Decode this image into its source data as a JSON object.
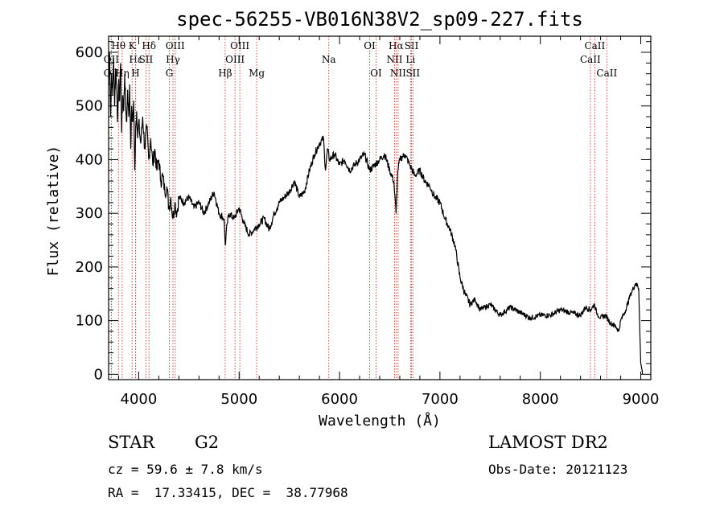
{
  "chart_data": {
    "type": "line",
    "title": "spec-56255-VB016N38V2_sp09-227.fits",
    "xlabel": "Wavelength (Å)",
    "ylabel": "Flux (relative)",
    "xlim": [
      3700,
      9100
    ],
    "ylim": [
      -10,
      630
    ],
    "xticks": [
      4000,
      5000,
      6000,
      7000,
      8000,
      9000
    ],
    "yticks": [
      0,
      100,
      200,
      300,
      400,
      500,
      600
    ],
    "line_color": "#000000",
    "marker_color": "#c0392b",
    "series": [
      {
        "x": [
          3700,
          3710,
          3720,
          3730,
          3740,
          3750,
          3760,
          3770,
          3780,
          3790,
          3800,
          3810,
          3820,
          3830,
          3840,
          3850,
          3860,
          3870,
          3880,
          3890,
          3900,
          3910,
          3920,
          3930,
          3940,
          3950,
          3960,
          3970,
          3980,
          3990,
          4000,
          4020,
          4040,
          4060,
          4080,
          4100,
          4120,
          4140,
          4160,
          4180,
          4200,
          4220,
          4240,
          4260,
          4280,
          4300,
          4320,
          4340,
          4360,
          4380,
          4400,
          4450,
          4500,
          4550,
          4600,
          4650,
          4700,
          4750,
          4800,
          4850,
          4862,
          4880,
          4900,
          4950,
          5000,
          5050,
          5100,
          5150,
          5200,
          5250,
          5300,
          5350,
          5400,
          5450,
          5500,
          5550,
          5600,
          5650,
          5700,
          5750,
          5800,
          5840,
          5860,
          5880,
          5900,
          5950,
          6000,
          6050,
          6100,
          6150,
          6200,
          6250,
          6300,
          6350,
          6400,
          6450,
          6500,
          6540,
          6563,
          6580,
          6600,
          6650,
          6700,
          6750,
          6800,
          6850,
          6900,
          6950,
          7000,
          7050,
          7100,
          7150,
          7200,
          7250,
          7300,
          7350,
          7400,
          7500,
          7600,
          7700,
          7800,
          7900,
          8000,
          8100,
          8200,
          8300,
          8400,
          8450,
          8500,
          8540,
          8560,
          8600,
          8650,
          8700,
          8750,
          8780,
          8800,
          8850,
          8900,
          8950,
          8980,
          9000,
          9010,
          9020
        ],
        "y": [
          540,
          600,
          480,
          560,
          520,
          590,
          500,
          570,
          540,
          470,
          550,
          510,
          580,
          450,
          520,
          490,
          560,
          500,
          470,
          530,
          480,
          540,
          420,
          500,
          470,
          510,
          380,
          460,
          490,
          440,
          470,
          430,
          480,
          420,
          460,
          400,
          440,
          390,
          420,
          380,
          400,
          360,
          370,
          340,
          350,
          310,
          330,
          290,
          320,
          300,
          330,
          320,
          330,
          310,
          320,
          300,
          320,
          340,
          300,
          290,
          240,
          280,
          300,
          290,
          310,
          280,
          260,
          270,
          280,
          290,
          270,
          300,
          320,
          330,
          340,
          360,
          330,
          340,
          380,
          410,
          430,
          440,
          380,
          420,
          400,
          410,
          390,
          400,
          380,
          390,
          400,
          410,
          380,
          390,
          400,
          410,
          380,
          360,
          300,
          380,
          400,
          410,
          390,
          370,
          380,
          360,
          350,
          330,
          320,
          290,
          270,
          240,
          180,
          150,
          130,
          140,
          120,
          130,
          110,
          125,
          115,
          105,
          110,
          110,
          120,
          115,
          110,
          125,
          120,
          130,
          115,
          105,
          110,
          95,
          90,
          80,
          100,
          120,
          150,
          170,
          160,
          20,
          10,
          0
        ]
      }
    ],
    "lines": [
      {
        "name": "Hθ",
        "wave": 3798,
        "row": 1
      },
      {
        "name": "OII",
        "wave": 3727,
        "row": 2
      },
      {
        "name": "OII",
        "wave": 3727,
        "row": 3
      },
      {
        "name": "K",
        "wave": 3934,
        "row": 1
      },
      {
        "name": "Hη",
        "wave": 3835,
        "row": 3
      },
      {
        "name": "Hε",
        "wave": 3970,
        "row": 2
      },
      {
        "name": "H",
        "wave": 3968,
        "row": 3
      },
      {
        "name": "Hδ",
        "wave": 4102,
        "row": 1
      },
      {
        "name": "SII",
        "wave": 4072,
        "row": 2
      },
      {
        "name": "OIII",
        "wave": 4363,
        "row": 1
      },
      {
        "name": "Hγ",
        "wave": 4341,
        "row": 2
      },
      {
        "name": "G",
        "wave": 4305,
        "row": 3
      },
      {
        "name": "Hβ",
        "wave": 4861,
        "row": 3
      },
      {
        "name": "OIII",
        "wave": 5007,
        "row": 1
      },
      {
        "name": "OIII",
        "wave": 4959,
        "row": 2
      },
      {
        "name": "Mg",
        "wave": 5175,
        "row": 3
      },
      {
        "name": "Na",
        "wave": 5893,
        "row": 2
      },
      {
        "name": "OI",
        "wave": 6300,
        "row": 1
      },
      {
        "name": "OI",
        "wave": 6364,
        "row": 3
      },
      {
        "name": "Hα",
        "wave": 6563,
        "row": 1
      },
      {
        "name": "NII",
        "wave": 6548,
        "row": 2
      },
      {
        "name": "NII",
        "wave": 6583,
        "row": 3
      },
      {
        "name": "SII",
        "wave": 6717,
        "row": 1
      },
      {
        "name": "Li",
        "wave": 6707,
        "row": 2
      },
      {
        "name": "SII",
        "wave": 6731,
        "row": 3
      },
      {
        "name": "CaII",
        "wave": 8542,
        "row": 1
      },
      {
        "name": "CaII",
        "wave": 8498,
        "row": 2
      },
      {
        "name": "CaII",
        "wave": 8662,
        "row": 3
      }
    ]
  },
  "info": {
    "object_class": "STAR",
    "subclass": "G2",
    "survey": "LAMOST DR2",
    "redshift": "cz = 59.6 ± 7.8 km/s",
    "obs_date": "Obs-Date: 20121123",
    "coords": "RA =  17.33415, DEC =  38.77968"
  }
}
